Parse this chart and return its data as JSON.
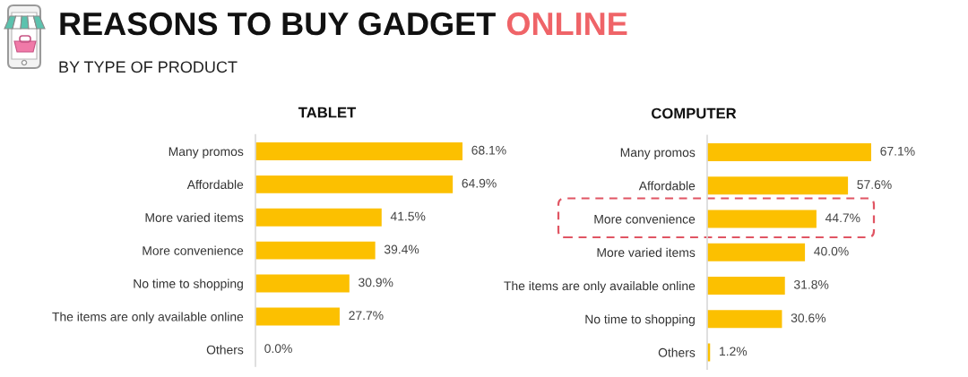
{
  "chart_data": [
    {
      "type": "other",
      "title": "REASONS TO BUY GADGET ONLINE",
      "subtitle": "BY TYPE OF PRODUCT"
    },
    {
      "type": "bar",
      "orientation": "horizontal",
      "title": "TABLET",
      "categories": [
        "Many promos",
        "Affordable",
        "More varied items",
        "More convenience",
        "No time to shopping",
        "The items are only available online",
        "Others"
      ],
      "values": [
        68.1,
        64.9,
        41.5,
        39.4,
        30.9,
        27.7,
        0.0
      ],
      "value_labels": [
        "68.1%",
        "64.9%",
        "41.5%",
        "39.4%",
        "30.9%",
        "27.7%",
        "0.0%"
      ],
      "color": "#fcc000",
      "tick_labels": "y"
    },
    {
      "type": "bar",
      "orientation": "horizontal",
      "title": "COMPUTER",
      "categories": [
        "Many promos",
        "Affordable",
        "More convenience",
        "More varied items",
        "The items are only available online",
        "No time to shopping",
        "Others"
      ],
      "values": [
        67.1,
        57.6,
        44.7,
        40.0,
        31.8,
        30.6,
        1.2
      ],
      "value_labels": [
        "67.1%",
        "57.6%",
        "44.7%",
        "40.0%",
        "31.8%",
        "30.6%",
        "1.2%"
      ],
      "color": "#fcc000",
      "tick_labels": "y"
    }
  ]
}
